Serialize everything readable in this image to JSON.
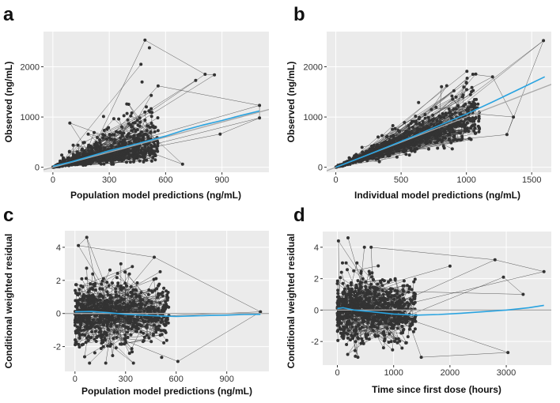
{
  "colors": {
    "panel_bg": "#ebebeb",
    "grid": "#ffffff",
    "points": "#333333",
    "identity_line": "#a9a9a9",
    "smooth_line": "#29a3e0"
  },
  "chart_data": [
    {
      "type": "scatter",
      "panel_label": "a",
      "xlabel": "Population model predictions (ng/mL)",
      "ylabel": "Observed (ng/mL)",
      "xlim": [
        -50,
        1150
      ],
      "ylim": [
        -100,
        2700
      ],
      "xticks": [
        {
          "value": 0,
          "label": "0"
        },
        {
          "value": 300,
          "label": "300"
        },
        {
          "value": 600,
          "label": "600"
        },
        {
          "value": 900,
          "label": "900"
        }
      ],
      "yticks": [
        {
          "value": 0,
          "label": "0"
        },
        {
          "value": 1000,
          "label": "1000"
        },
        {
          "value": 2000,
          "label": "2000"
        }
      ],
      "reference_line": {
        "type": "identity",
        "slope": 1,
        "intercept": 0
      },
      "smooth": {
        "x": [
          0,
          100,
          200,
          300,
          400,
          500,
          600,
          700,
          800,
          900,
          1000,
          1100
        ],
        "y": [
          20,
          110,
          220,
          330,
          420,
          520,
          620,
          740,
          840,
          930,
          1030,
          1120
        ]
      },
      "cloud": {
        "n": 700,
        "x_range": [
          0,
          560
        ],
        "model": "ratio",
        "spread": 0.55
      },
      "notable_points": [
        [
          490,
          2530
        ],
        [
          810,
          1850
        ],
        [
          860,
          1840
        ],
        [
          760,
          1730
        ],
        [
          560,
          1620
        ],
        [
          1100,
          1230
        ],
        [
          1100,
          980
        ],
        [
          890,
          660
        ],
        [
          690,
          60
        ],
        [
          90,
          880
        ]
      ]
    },
    {
      "type": "scatter",
      "panel_label": "b",
      "xlabel": "Individual model predictions (ng/mL)",
      "ylabel": "Observed (ng/mL)",
      "xlim": [
        -70,
        1650
      ],
      "ylim": [
        -100,
        2700
      ],
      "xticks": [
        {
          "value": 0,
          "label": "0"
        },
        {
          "value": 500,
          "label": "500"
        },
        {
          "value": 1000,
          "label": "1000"
        },
        {
          "value": 1500,
          "label": "1500"
        }
      ],
      "yticks": [
        {
          "value": 0,
          "label": "0"
        },
        {
          "value": 1000,
          "label": "1000"
        },
        {
          "value": 2000,
          "label": "2000"
        }
      ],
      "reference_line": {
        "type": "identity",
        "slope": 1,
        "intercept": 0
      },
      "smooth": {
        "x": [
          0,
          200,
          400,
          600,
          800,
          1000,
          1200,
          1400,
          1600
        ],
        "y": [
          0,
          200,
          410,
          620,
          840,
          1060,
          1300,
          1550,
          1800
        ]
      },
      "cloud": {
        "n": 700,
        "x_range": [
          0,
          1100
        ],
        "model": "ratio",
        "spread": 0.28
      },
      "notable_points": [
        [
          1590,
          2520
        ],
        [
          1310,
          650
        ],
        [
          1360,
          1000
        ],
        [
          1200,
          1800
        ],
        [
          1050,
          1850
        ]
      ]
    },
    {
      "type": "scatter",
      "panel_label": "c",
      "xlabel": "Population model predictions (ng/mL)",
      "ylabel": "Conditional weighted residual",
      "xlim": [
        -60,
        1150
      ],
      "ylim": [
        -3.5,
        5
      ],
      "xticks": [
        {
          "value": 0,
          "label": "0"
        },
        {
          "value": 300,
          "label": "300"
        },
        {
          "value": 600,
          "label": "600"
        },
        {
          "value": 900,
          "label": "900"
        }
      ],
      "yticks": [
        {
          "value": -2,
          "label": "-2"
        },
        {
          "value": 0,
          "label": "0"
        },
        {
          "value": 2,
          "label": "2"
        },
        {
          "value": 4,
          "label": "4"
        }
      ],
      "reference_line": {
        "type": "horizontal",
        "value": 0
      },
      "smooth": {
        "x": [
          0,
          100,
          200,
          300,
          400,
          500,
          600,
          700,
          800,
          900,
          1000,
          1100
        ],
        "y": [
          0.1,
          0.12,
          0.05,
          -0.05,
          -0.1,
          -0.15,
          -0.18,
          -0.15,
          -0.12,
          -0.1,
          -0.06,
          -0.05
        ]
      },
      "cloud": {
        "n": 700,
        "x_range": [
          0,
          560
        ],
        "model": "residual",
        "spread": 1.0
      },
      "notable_points": [
        [
          70,
          4.6
        ],
        [
          20,
          4.1
        ],
        [
          470,
          3.4
        ],
        [
          1100,
          0.1
        ],
        [
          610,
          -2.9
        ]
      ]
    },
    {
      "type": "scatter",
      "panel_label": "d",
      "xlabel": "Time since first dose (hours)",
      "ylabel": "Conditional weighted residual",
      "xlim": [
        -260,
        3800
      ],
      "ylim": [
        -3.5,
        5
      ],
      "xticks": [
        {
          "value": 0,
          "label": "0"
        },
        {
          "value": 1000,
          "label": "1000"
        },
        {
          "value": 2000,
          "label": "2000"
        },
        {
          "value": 3000,
          "label": "3000"
        }
      ],
      "yticks": [
        {
          "value": -2,
          "label": "-2"
        },
        {
          "value": 0,
          "label": "0"
        },
        {
          "value": 2,
          "label": "2"
        },
        {
          "value": 4,
          "label": "4"
        }
      ],
      "reference_line": {
        "type": "horizontal",
        "value": 0
      },
      "smooth": {
        "x": [
          0,
          100,
          300,
          600,
          1000,
          1400,
          1800,
          2200,
          2600,
          3000,
          3400,
          3670
        ],
        "y": [
          0.1,
          0.15,
          0.0,
          -0.1,
          -0.25,
          -0.32,
          -0.28,
          -0.2,
          -0.1,
          0.0,
          0.15,
          0.3
        ]
      },
      "cloud": {
        "n": 700,
        "x_range": [
          0,
          1400
        ],
        "model": "residual",
        "spread": 1.0
      },
      "notable_points": [
        [
          20,
          4.4
        ],
        [
          190,
          4.6
        ],
        [
          480,
          4.0
        ],
        [
          600,
          4.0
        ],
        [
          2800,
          3.2
        ],
        [
          3670,
          2.45
        ],
        [
          3030,
          -2.7
        ],
        [
          1490,
          -3.0
        ],
        [
          2000,
          2.8
        ],
        [
          3300,
          1.0
        ],
        [
          2950,
          2.1
        ]
      ]
    }
  ]
}
